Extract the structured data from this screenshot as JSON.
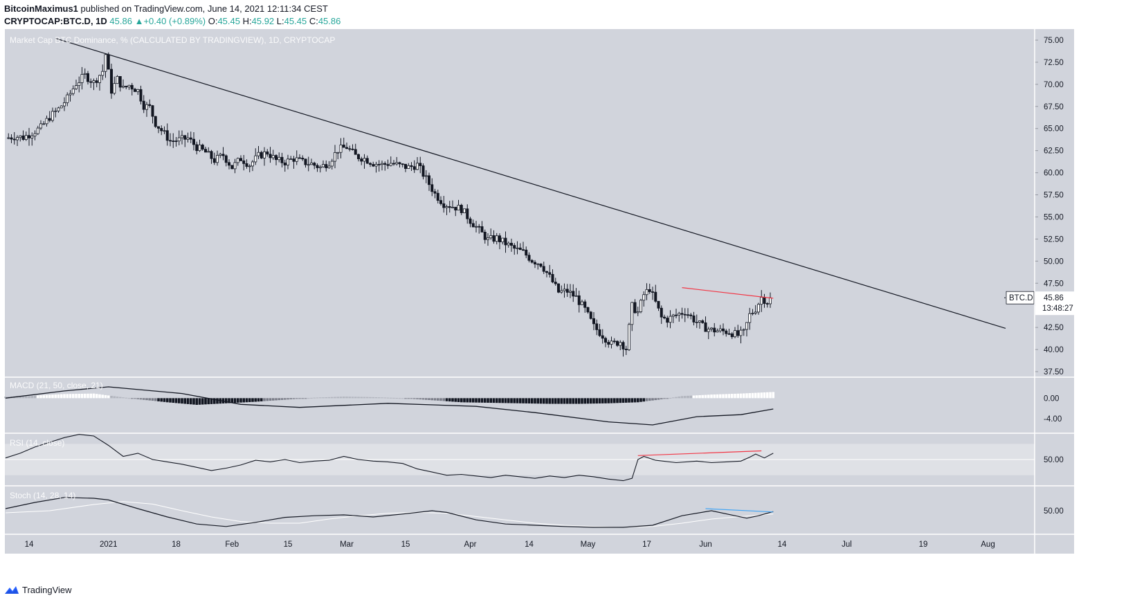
{
  "header": {
    "author": "BitcoinMaximus1",
    "published": "published on TradingView.com, June 14, 2021 12:11:34 CEST",
    "symbol": "CRYPTOCAP:BTC.D, 1D",
    "last": "45.86",
    "change": "+0.40 (+0.89%)",
    "o_label": "O:",
    "o": "45.45",
    "h_label": "H:",
    "h": "45.92",
    "l_label": "L:",
    "l": "45.45",
    "c_label": "C:",
    "c": "45.86"
  },
  "footer": {
    "brand": "TradingView",
    "logo_icon": "tradingview-logo-icon"
  },
  "colors": {
    "pane_bg": "#d1d4dc",
    "rsi_band": "#dfe1e6",
    "red_line": "#f23645",
    "blue_line": "#42a5f5"
  },
  "chart_data": [
    {
      "type": "candlestick",
      "title": "Market Cap BTC Dominance, % (CALCULATED BY TRADINGVIEW), 1D, CRYPTOCAP",
      "x_ticks": [
        "14",
        "2021",
        "18",
        "Feb",
        "15",
        "Mar",
        "15",
        "Apr",
        "14",
        "May",
        "17",
        "Jun",
        "14",
        "Jul",
        "19",
        "Aug"
      ],
      "y_ticks": [
        "75.00",
        "72.50",
        "70.00",
        "67.50",
        "65.00",
        "62.50",
        "60.00",
        "57.50",
        "55.00",
        "52.50",
        "50.00",
        "47.50",
        "45.00",
        "42.50",
        "40.00",
        "37.50"
      ],
      "ylim": [
        37.5,
        75
      ],
      "price_label": {
        "symbol": "BTC.D",
        "value": "45.86",
        "countdown": "13:48:27"
      },
      "close_path": [
        [
          0,
          63.9
        ],
        [
          3,
          64.1
        ],
        [
          6,
          64.0
        ],
        [
          9,
          64.5
        ],
        [
          12,
          65.1
        ],
        [
          15,
          66.3
        ],
        [
          18,
          67.2
        ],
        [
          21,
          68.4
        ],
        [
          24,
          70.1
        ],
        [
          27,
          71.0
        ],
        [
          30,
          70.2
        ],
        [
          33,
          71.5
        ],
        [
          34,
          73.4
        ],
        [
          36,
          69.3
        ],
        [
          38,
          70.6
        ],
        [
          40,
          69.5
        ],
        [
          42,
          69.9
        ],
        [
          45,
          69.3
        ],
        [
          47,
          67.6
        ],
        [
          49,
          67.4
        ],
        [
          51,
          65.6
        ],
        [
          53,
          64.8
        ],
        [
          56,
          63.6
        ],
        [
          59,
          63.7
        ],
        [
          62,
          63.9
        ],
        [
          65,
          62.9
        ],
        [
          68,
          62.3
        ],
        [
          71,
          61.4
        ],
        [
          74,
          62.0
        ],
        [
          77,
          60.6
        ],
        [
          80,
          61.6
        ],
        [
          83,
          60.9
        ],
        [
          86,
          61.9
        ],
        [
          89,
          62.3
        ],
        [
          92,
          61.4
        ],
        [
          95,
          61.2
        ],
        [
          98,
          61.6
        ],
        [
          101,
          61.2
        ],
        [
          104,
          61.0
        ],
        [
          107,
          60.6
        ],
        [
          110,
          61.2
        ],
        [
          113,
          62.6
        ],
        [
          116,
          62.9
        ],
        [
          119,
          61.9
        ],
        [
          122,
          61.6
        ],
        [
          125,
          61.1
        ],
        [
          128,
          60.9
        ],
        [
          131,
          61.1
        ],
        [
          134,
          60.8
        ],
        [
          137,
          60.6
        ],
        [
          140,
          60.9
        ],
        [
          143,
          59.3
        ],
        [
          146,
          57.6
        ],
        [
          149,
          56.5
        ],
        [
          152,
          56.2
        ],
        [
          155,
          55.9
        ],
        [
          158,
          54.6
        ],
        [
          161,
          53.5
        ],
        [
          164,
          52.4
        ],
        [
          167,
          52.6
        ],
        [
          170,
          52.0
        ],
        [
          173,
          51.4
        ],
        [
          176,
          51.0
        ],
        [
          179,
          50.1
        ],
        [
          182,
          49.7
        ],
        [
          185,
          48.2
        ],
        [
          188,
          46.5
        ],
        [
          191,
          46.6
        ],
        [
          194,
          45.9
        ],
        [
          197,
          44.5
        ],
        [
          200,
          42.6
        ],
        [
          203,
          41.6
        ],
        [
          206,
          40.6
        ],
        [
          209,
          40.9
        ],
        [
          211,
          40.1
        ],
        [
          213,
          44.9
        ],
        [
          215,
          44.2
        ],
        [
          217,
          46.2
        ],
        [
          219,
          46.9
        ],
        [
          221,
          45.3
        ],
        [
          223,
          43.6
        ],
        [
          225,
          43.4
        ],
        [
          228,
          43.9
        ],
        [
          231,
          44.3
        ],
        [
          234,
          43.4
        ],
        [
          237,
          42.6
        ],
        [
          240,
          42.2
        ],
        [
          243,
          42.1
        ],
        [
          246,
          42.0
        ],
        [
          249,
          41.6
        ],
        [
          251,
          41.9
        ],
        [
          253,
          43.9
        ],
        [
          255,
          44.6
        ],
        [
          257,
          45.9
        ],
        [
          259,
          45.4
        ],
        [
          260,
          45.86
        ]
      ],
      "trend_lines": [
        {
          "name": "descending-trendline",
          "color": "#131722",
          "from": [
            17,
            75.2
          ],
          "to": [
            340,
            42.4
          ]
        },
        {
          "name": "lower-high-line",
          "color": "#f23645",
          "from": [
            230,
            47.0
          ],
          "to": [
            261,
            45.8
          ]
        }
      ]
    },
    {
      "type": "line",
      "title": "MACD (21, 50, close, 21)",
      "y_ticks": [
        "0.00",
        "-4.00"
      ],
      "ylim": [
        -6,
        3
      ],
      "macd": [
        [
          0,
          0
        ],
        [
          20,
          1.4
        ],
        [
          35,
          2.2
        ],
        [
          60,
          0.9
        ],
        [
          80,
          -1.2
        ],
        [
          100,
          -1.8
        ],
        [
          130,
          -1.0
        ],
        [
          160,
          -1.6
        ],
        [
          180,
          -2.8
        ],
        [
          205,
          -4.6
        ],
        [
          220,
          -5.2
        ],
        [
          235,
          -3.6
        ],
        [
          250,
          -3.2
        ],
        [
          261,
          -2.1
        ]
      ],
      "histogram": [
        [
          0,
          0.3
        ],
        [
          10,
          0.5
        ],
        [
          20,
          0.8
        ],
        [
          30,
          0.9
        ],
        [
          38,
          0.3
        ],
        [
          45,
          -0.2
        ],
        [
          55,
          -0.8
        ],
        [
          65,
          -1.3
        ],
        [
          75,
          -1.0
        ],
        [
          85,
          -0.7
        ],
        [
          95,
          -0.3
        ],
        [
          105,
          0.1
        ],
        [
          115,
          0.3
        ],
        [
          125,
          0.2
        ],
        [
          135,
          0.0
        ],
        [
          145,
          -0.4
        ],
        [
          155,
          -0.8
        ],
        [
          165,
          -0.9
        ],
        [
          175,
          -1.0
        ],
        [
          185,
          -1.1
        ],
        [
          195,
          -1.1
        ],
        [
          205,
          -1.0
        ],
        [
          215,
          -0.8
        ],
        [
          222,
          -0.3
        ],
        [
          230,
          0.4
        ],
        [
          240,
          0.7
        ],
        [
          250,
          0.9
        ],
        [
          261,
          1.2
        ]
      ]
    },
    {
      "type": "line",
      "title": "RSI (14, close)",
      "y_ticks": [
        "50.00"
      ],
      "ylim": [
        20,
        80
      ],
      "rsi": [
        [
          0,
          52
        ],
        [
          5,
          58
        ],
        [
          10,
          66
        ],
        [
          15,
          72
        ],
        [
          20,
          78
        ],
        [
          25,
          82
        ],
        [
          30,
          80
        ],
        [
          35,
          68
        ],
        [
          40,
          54
        ],
        [
          45,
          58
        ],
        [
          50,
          50
        ],
        [
          55,
          47
        ],
        [
          60,
          44
        ],
        [
          65,
          40
        ],
        [
          70,
          36
        ],
        [
          75,
          39
        ],
        [
          80,
          43
        ],
        [
          85,
          49
        ],
        [
          90,
          47
        ],
        [
          95,
          50
        ],
        [
          100,
          46
        ],
        [
          105,
          48
        ],
        [
          110,
          49
        ],
        [
          115,
          54
        ],
        [
          120,
          50
        ],
        [
          125,
          48
        ],
        [
          130,
          47
        ],
        [
          135,
          45
        ],
        [
          140,
          38
        ],
        [
          145,
          34
        ],
        [
          150,
          30
        ],
        [
          155,
          31
        ],
        [
          160,
          29
        ],
        [
          165,
          27
        ],
        [
          170,
          30
        ],
        [
          175,
          28
        ],
        [
          180,
          26
        ],
        [
          185,
          29
        ],
        [
          190,
          27
        ],
        [
          195,
          30
        ],
        [
          200,
          28
        ],
        [
          205,
          25
        ],
        [
          210,
          23
        ],
        [
          213,
          26
        ],
        [
          215,
          50
        ],
        [
          217,
          54
        ],
        [
          221,
          49
        ],
        [
          228,
          46
        ],
        [
          235,
          48
        ],
        [
          240,
          46
        ],
        [
          245,
          47
        ],
        [
          250,
          48
        ],
        [
          253,
          53
        ],
        [
          255,
          57
        ],
        [
          258,
          52
        ],
        [
          261,
          58
        ]
      ],
      "divergence": {
        "color": "#f23645",
        "from": [
          215,
          55
        ],
        "to": [
          257,
          61
        ]
      }
    },
    {
      "type": "line",
      "title": "Stoch (14, 28, 14)",
      "y_ticks": [
        "50.00"
      ],
      "ylim": [
        0,
        100
      ],
      "k": [
        [
          0,
          55
        ],
        [
          10,
          70
        ],
        [
          20,
          82
        ],
        [
          30,
          80
        ],
        [
          35,
          76
        ],
        [
          45,
          55
        ],
        [
          55,
          35
        ],
        [
          65,
          18
        ],
        [
          75,
          12
        ],
        [
          85,
          22
        ],
        [
          95,
          34
        ],
        [
          105,
          38
        ],
        [
          115,
          40
        ],
        [
          125,
          35
        ],
        [
          135,
          42
        ],
        [
          145,
          50
        ],
        [
          150,
          46
        ],
        [
          160,
          28
        ],
        [
          170,
          18
        ],
        [
          180,
          15
        ],
        [
          190,
          12
        ],
        [
          200,
          10
        ],
        [
          210,
          10
        ],
        [
          220,
          15
        ],
        [
          230,
          38
        ],
        [
          240,
          50
        ],
        [
          248,
          38
        ],
        [
          252,
          32
        ],
        [
          256,
          38
        ],
        [
          261,
          48
        ]
      ],
      "d": [
        [
          0,
          45
        ],
        [
          15,
          50
        ],
        [
          30,
          65
        ],
        [
          40,
          72
        ],
        [
          50,
          66
        ],
        [
          60,
          50
        ],
        [
          70,
          35
        ],
        [
          80,
          24
        ],
        [
          90,
          20
        ],
        [
          100,
          20
        ],
        [
          110,
          30
        ],
        [
          120,
          38
        ],
        [
          130,
          44
        ],
        [
          140,
          46
        ],
        [
          150,
          44
        ],
        [
          160,
          36
        ],
        [
          170,
          28
        ],
        [
          180,
          20
        ],
        [
          190,
          15
        ],
        [
          200,
          12
        ],
        [
          210,
          10
        ],
        [
          220,
          12
        ],
        [
          230,
          20
        ],
        [
          240,
          30
        ],
        [
          250,
          36
        ],
        [
          261,
          42
        ]
      ],
      "divergence": {
        "color": "#42a5f5",
        "from": [
          238,
          55
        ],
        "to": [
          261,
          47
        ]
      }
    }
  ]
}
